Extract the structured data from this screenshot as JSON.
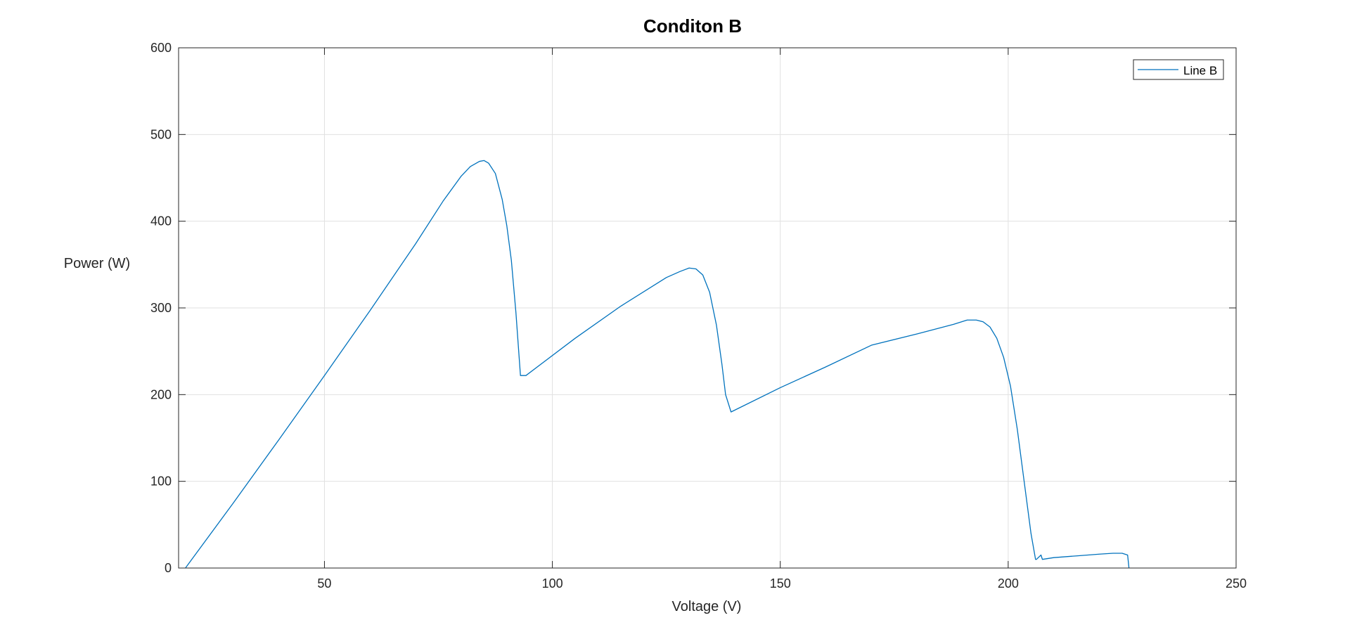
{
  "chart_data": {
    "type": "line",
    "title": "Conditon B",
    "xlabel": "Voltage (V)",
    "ylabel": "Power (W)",
    "xlim": [
      18,
      250
    ],
    "ylim": [
      0,
      600
    ],
    "xticks": [
      50,
      100,
      150,
      200,
      250
    ],
    "yticks": [
      0,
      100,
      200,
      300,
      400,
      500,
      600
    ],
    "grid": true,
    "legend_position": "top-right",
    "colors": {
      "series": "#0072BD",
      "grid": "#E1E1E1",
      "axes": "#262626"
    },
    "series": [
      {
        "name": "Line B",
        "x": [
          19.5,
          30,
          40,
          50,
          60,
          70,
          76,
          80,
          82,
          84,
          85,
          86,
          87.5,
          89,
          90,
          91,
          92,
          93,
          94.2,
          105,
          115,
          125,
          128,
          130,
          131.5,
          133,
          134.5,
          136,
          137.2,
          138,
          139.2,
          150,
          160,
          170,
          180,
          188,
          191,
          193,
          194.5,
          196,
          197.5,
          199,
          200.5,
          202,
          203.5,
          205,
          206,
          206.2,
          207.2,
          207.5,
          210,
          215,
          220,
          223,
          225,
          226.2,
          226.5
        ],
        "y": [
          0,
          75,
          148,
          222,
          297,
          374,
          423,
          452,
          463,
          469,
          470,
          467,
          455,
          425,
          395,
          355,
          295,
          222,
          222,
          265,
          302,
          335,
          342,
          346,
          345,
          338,
          318,
          280,
          235,
          200,
          180,
          208,
          232,
          257,
          270,
          281,
          286,
          286,
          284,
          278,
          265,
          243,
          210,
          160,
          100,
          40,
          10,
          10,
          15,
          10,
          12,
          14,
          16,
          17,
          17,
          15,
          0
        ]
      }
    ]
  }
}
